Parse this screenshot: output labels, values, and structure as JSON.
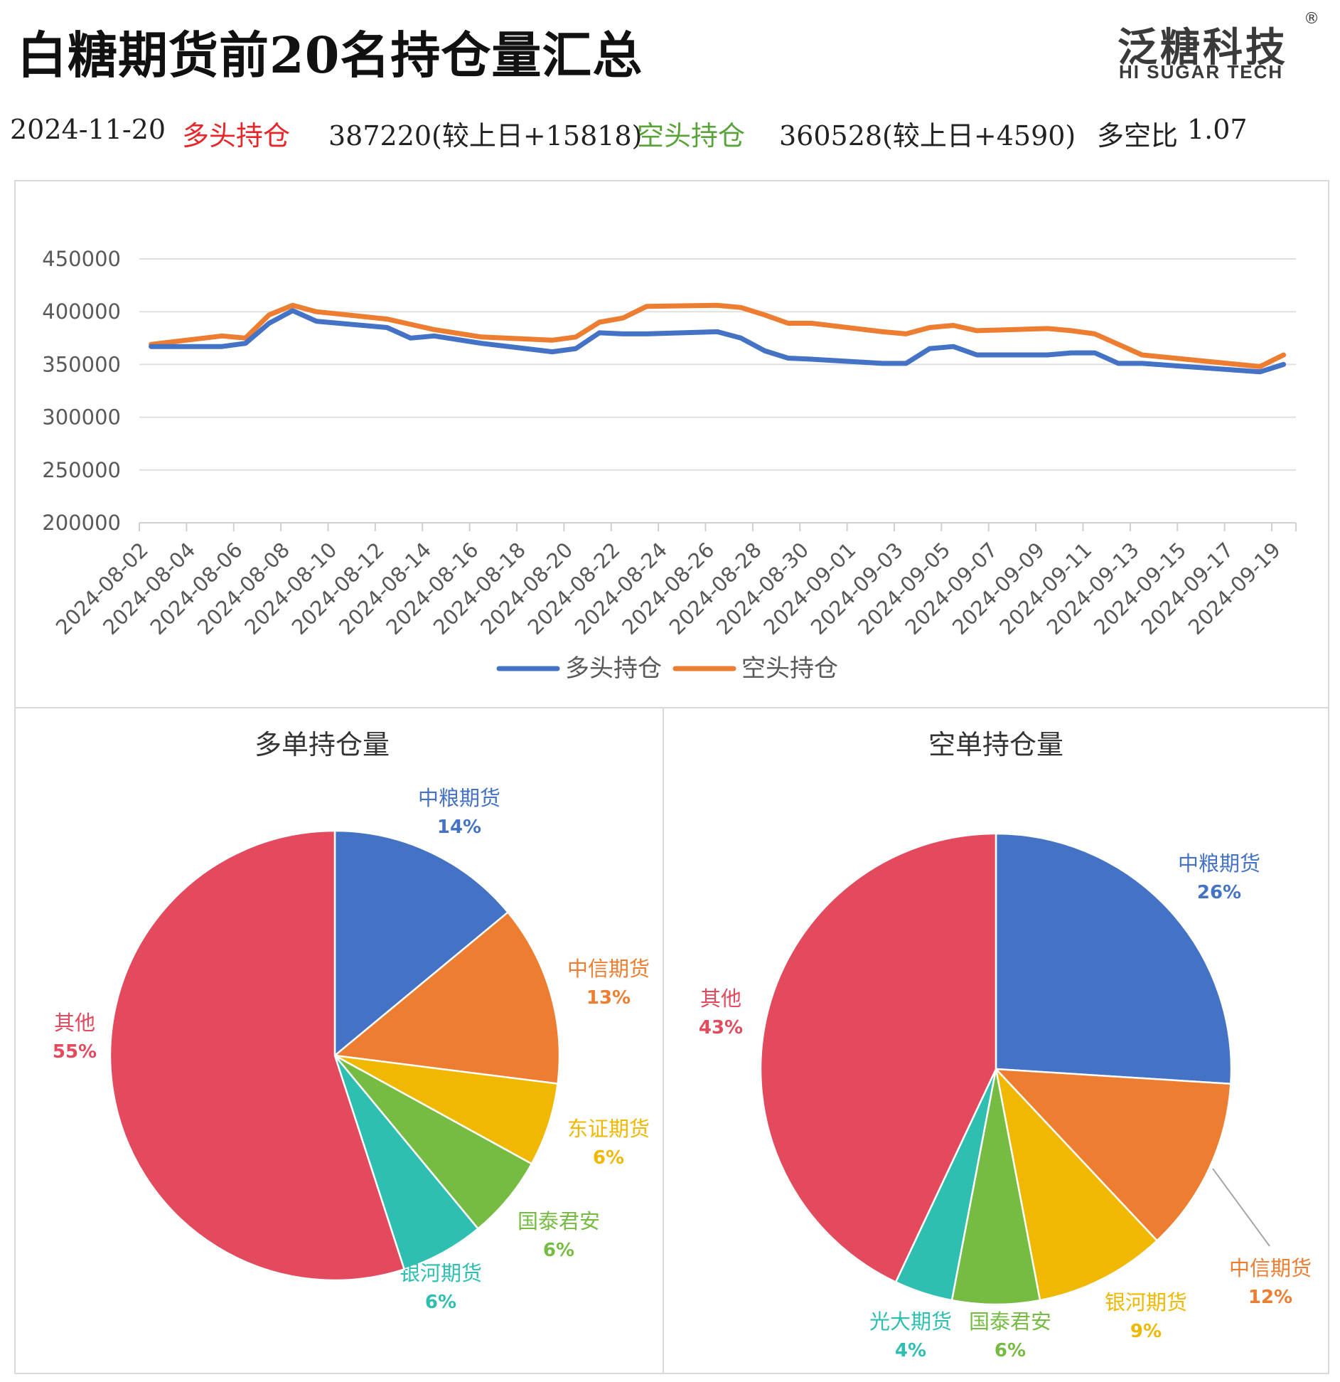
{
  "header": {
    "title": "白糖期货前20名持仓量汇总",
    "logo_cn": "泛糖科技",
    "logo_en": "HI SUGAR TECH",
    "logo_reg": "®"
  },
  "summary": {
    "date": "2024-11-20",
    "long_label": "多头持仓",
    "long_value": "387220(较上日+15818)",
    "short_label": "空头持仓",
    "short_value": "360528(较上日+4590)",
    "ratio_label": "多空比",
    "ratio_value": "1.07",
    "long_color": "#e8262a",
    "short_color": "#5aa33a"
  },
  "chart_data": [
    {
      "type": "line",
      "ylim": [
        200000,
        450000
      ],
      "yticks": [
        "200000",
        "250000",
        "300000",
        "350000",
        "400000",
        "450000"
      ],
      "xticks": [
        "2024-08-02",
        "2024-08-04",
        "2024-08-06",
        "2024-08-08",
        "2024-08-10",
        "2024-08-12",
        "2024-08-14",
        "2024-08-16",
        "2024-08-18",
        "2024-08-20",
        "2024-08-22",
        "2024-08-24",
        "2024-08-26",
        "2024-08-28",
        "2024-08-30",
        "2024-09-01",
        "2024-09-03",
        "2024-09-05",
        "2024-09-07",
        "2024-09-09",
        "2024-09-11",
        "2024-09-13",
        "2024-09-15",
        "2024-09-17",
        "2024-09-19"
      ],
      "grid": true,
      "legend": "bottom",
      "x": [
        "2024-08-02",
        "2024-08-05",
        "2024-08-06",
        "2024-08-07",
        "2024-08-08",
        "2024-08-09",
        "2024-08-12",
        "2024-08-13",
        "2024-08-14",
        "2024-08-16",
        "2024-08-19",
        "2024-08-20",
        "2024-08-21",
        "2024-08-22",
        "2024-08-23",
        "2024-08-26",
        "2024-08-27",
        "2024-08-28",
        "2024-08-29",
        "2024-08-30",
        "2024-09-02",
        "2024-09-03",
        "2024-09-04",
        "2024-09-05",
        "2024-09-06",
        "2024-09-09",
        "2024-09-10",
        "2024-09-11",
        "2024-09-12",
        "2024-09-13",
        "2024-09-18",
        "2024-09-19"
      ],
      "series": [
        {
          "name": "多头持仓",
          "color": "#4472C4",
          "values": [
            367000,
            367000,
            370000,
            389000,
            401000,
            391000,
            385000,
            375000,
            377000,
            370000,
            362000,
            365000,
            380000,
            379000,
            379000,
            381000,
            375000,
            363000,
            356000,
            355000,
            351000,
            351000,
            365000,
            367000,
            359000,
            359000,
            361000,
            361000,
            351000,
            351000,
            343000,
            350000
          ]
        },
        {
          "name": "空头持仓",
          "color": "#ED7D31",
          "values": [
            369000,
            377000,
            375000,
            397000,
            406000,
            400000,
            393000,
            388000,
            383000,
            376000,
            373000,
            376000,
            390000,
            394000,
            405000,
            406000,
            404000,
            397000,
            389000,
            389000,
            381000,
            379000,
            385000,
            387000,
            382000,
            384000,
            382000,
            379000,
            369000,
            359000,
            348000,
            359000
          ]
        }
      ]
    },
    {
      "type": "pie",
      "title": "多单持仓量",
      "slices": [
        {
          "label": "中粮期货",
          "value": 14,
          "pct": "14%",
          "color": "#4472C4"
        },
        {
          "label": "中信期货",
          "value": 13,
          "pct": "13%",
          "color": "#ED7D31"
        },
        {
          "label": "东证期货",
          "value": 6,
          "pct": "6%",
          "color": "#F0B800"
        },
        {
          "label": "国泰君安",
          "value": 6,
          "pct": "6%",
          "color": "#76BC43"
        },
        {
          "label": "银河期货",
          "value": 6,
          "pct": "6%",
          "color": "#2EBFB0"
        },
        {
          "label": "其他",
          "value": 55,
          "pct": "55%",
          "color": "#E34A5E"
        }
      ]
    },
    {
      "type": "pie",
      "title": "空单持仓量",
      "slices": [
        {
          "label": "中粮期货",
          "value": 26,
          "pct": "26%",
          "color": "#4472C4"
        },
        {
          "label": "中信期货",
          "value": 12,
          "pct": "12%",
          "color": "#ED7D31"
        },
        {
          "label": "银河期货",
          "value": 9,
          "pct": "9%",
          "color": "#F0B800"
        },
        {
          "label": "国泰君安",
          "value": 6,
          "pct": "6%",
          "color": "#76BC43"
        },
        {
          "label": "光大期货",
          "value": 4,
          "pct": "4%",
          "color": "#2EBFB0"
        },
        {
          "label": "其他",
          "value": 43,
          "pct": "43%",
          "color": "#E34A5E"
        }
      ]
    }
  ]
}
